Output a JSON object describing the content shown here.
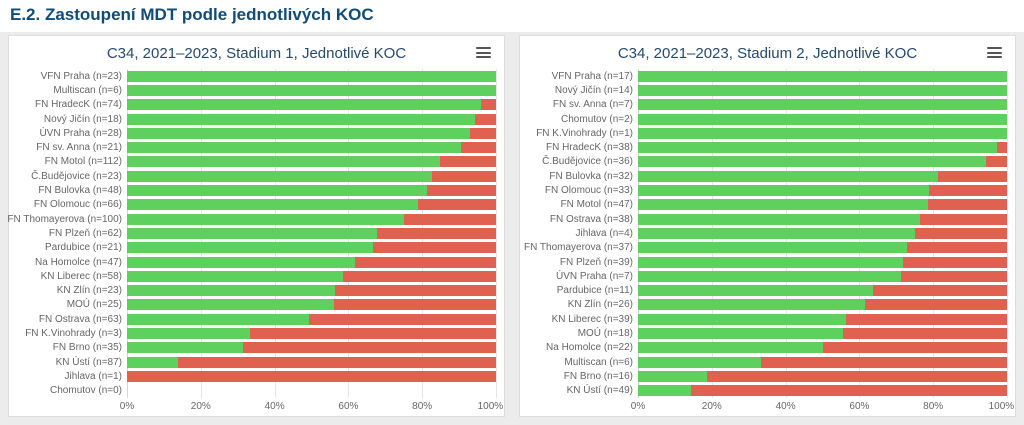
{
  "page": {
    "heading": "E.2. Zastoupení MDT podle jednotlivých KOC"
  },
  "colors": {
    "green": "#5dd05d",
    "red": "#e0614f",
    "heading": "#0f4c7c",
    "title": "#254a6e",
    "label": "#666666"
  },
  "icons": {
    "menu": "hamburger-icon"
  },
  "chart_data": [
    {
      "type": "bar",
      "orientation": "horizontal",
      "stacked": true,
      "title": "C34, 2021–2023, Stadium 1, Jednotlivé KOC",
      "xlabel": "",
      "ylabel": "",
      "xlim": [
        0,
        100
      ],
      "x_tick_labels": [
        "0%",
        "20%",
        "40%",
        "60%",
        "80%",
        "100%"
      ],
      "grid": true,
      "legend": false,
      "categories": [
        "VFN Praha (n=23)",
        "Multiscan (n=6)",
        "FN HradecK (n=74)",
        "Nový Jičín (n=18)",
        "ÚVN Praha (n=28)",
        "FN sv. Anna (n=21)",
        "FN Motol (n=112)",
        "Č.Budějovice (n=23)",
        "FN Bulovka (n=48)",
        "FN Olomouc (n=66)",
        "FN Thomayerova (n=100)",
        "FN Plzeň (n=62)",
        "Pardubice (n=21)",
        "Na Homolce (n=47)",
        "KN Liberec (n=58)",
        "KN Zlín (n=23)",
        "MOÚ (n=25)",
        "FN Ostrava (n=63)",
        "FN K.Vinohrady (n=3)",
        "FN Brno (n=35)",
        "KN Ústí (n=87)",
        "Jihlava (n=1)",
        "Chomutov (n=0)"
      ],
      "green_pct": [
        100,
        100,
        95.9,
        94.4,
        92.9,
        90.5,
        84.8,
        82.6,
        81.3,
        78.8,
        75,
        67.7,
        66.7,
        61.7,
        58.6,
        56.5,
        56,
        49.2,
        33.3,
        31.4,
        13.8,
        0,
        null
      ]
    },
    {
      "type": "bar",
      "orientation": "horizontal",
      "stacked": true,
      "title": "C34, 2021–2023, Stadium 2, Jednotlivé KOC",
      "xlabel": "",
      "ylabel": "",
      "xlim": [
        0,
        100
      ],
      "x_tick_labels": [
        "0%",
        "20%",
        "40%",
        "60%",
        "80%",
        "100%"
      ],
      "grid": true,
      "legend": false,
      "categories": [
        "VFN Praha (n=17)",
        "Nový Jičín (n=14)",
        "FN sv. Anna (n=7)",
        "Chomutov (n=2)",
        "FN K.Vinohrady (n=1)",
        "FN HradecK (n=38)",
        "Č.Budějovice (n=36)",
        "FN Bulovka (n=32)",
        "FN Olomouc (n=33)",
        "FN Motol (n=47)",
        "FN Ostrava (n=38)",
        "Jihlava (n=4)",
        "FN Thomayerova (n=37)",
        "FN Plzeň (n=39)",
        "ÚVN Praha (n=7)",
        "Pardubice (n=11)",
        "KN Zlín (n=26)",
        "KN Liberec (n=39)",
        "MOÚ (n=18)",
        "Na Homolce (n=22)",
        "Multiscan (n=6)",
        "FN Brno (n=16)",
        "KN Ústí (n=49)"
      ],
      "green_pct": [
        100,
        100,
        100,
        100,
        100,
        97.4,
        94.4,
        81.3,
        78.8,
        78.7,
        76.3,
        75,
        73,
        71.8,
        71.4,
        63.6,
        61.5,
        56.4,
        55.6,
        50,
        33.3,
        18.8,
        14.3
      ]
    }
  ]
}
